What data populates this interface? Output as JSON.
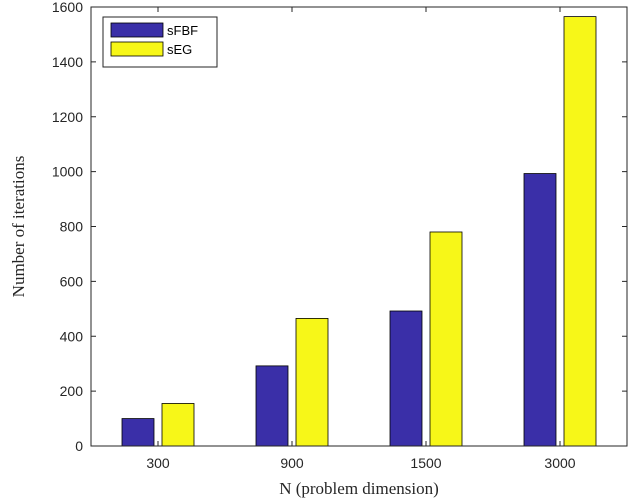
{
  "chart_data": {
    "type": "bar",
    "categories": [
      "300",
      "900",
      "1500",
      "3000"
    ],
    "series": [
      {
        "name": "sFBF",
        "values": [
          100,
          292,
          492,
          993
        ],
        "color": "#3a2fa8"
      },
      {
        "name": "sEG",
        "values": [
          155,
          465,
          780,
          1565
        ],
        "color": "#f7f718"
      }
    ],
    "title": "",
    "xlabel": "N (problem dimension)",
    "ylabel": "Number of iterations",
    "ylim": [
      0,
      1600
    ],
    "yticks": [
      0,
      200,
      400,
      600,
      800,
      1000,
      1200,
      1400,
      1600
    ],
    "grid": false,
    "legend_position": "top-left"
  }
}
